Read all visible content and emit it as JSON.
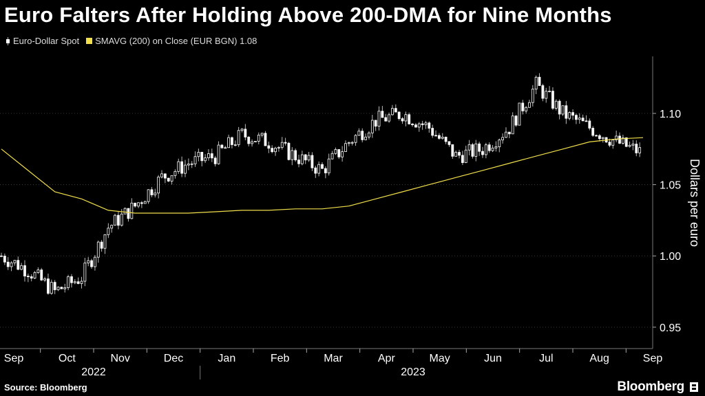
{
  "title": "Euro Falters After Holding Above 200-DMA for Nine Months",
  "legend": {
    "spot_label": "Euro-Dollar Spot",
    "sma_label": "SMAVG (200)  on Close (EUR BGN) 1.08"
  },
  "colors": {
    "background": "#000000",
    "candle": "#ffffff",
    "sma_line": "#f2e04a",
    "grid": "#3a3a3a",
    "text": "#ffffff"
  },
  "source": "Source: Bloomberg",
  "brand": "Bloomberg",
  "chart_data": {
    "type": "line",
    "title": "Euro Falters After Holding Above 200-DMA for Nine Months",
    "ylabel": "Dollars per euro",
    "y_axis_position": "right",
    "ylim": [
      0.935,
      1.14
    ],
    "yticks": [
      0.95,
      1.0,
      1.05,
      1.1
    ],
    "ytick_labels": [
      "0.95",
      "1.00",
      "1.05",
      "1.10"
    ],
    "grid": true,
    "legend_position": "top-left",
    "x_month_labels": [
      "Sep",
      "Oct",
      "Nov",
      "Dec",
      "Jan",
      "Feb",
      "Mar",
      "Apr",
      "May",
      "Jun",
      "Jul",
      "Aug",
      "Sep"
    ],
    "x_year_labels": [
      {
        "label": "2022",
        "under_months": [
          "Oct",
          "Nov"
        ]
      },
      {
        "label": "2023",
        "under_months": [
          "Apr",
          "May"
        ]
      }
    ],
    "x": [
      "2022-09",
      "2022-09",
      "2022-10",
      "2022-10",
      "2022-11",
      "2022-11",
      "2022-12",
      "2022-12",
      "2023-01",
      "2023-01",
      "2023-02",
      "2023-02",
      "2023-03",
      "2023-03",
      "2023-04",
      "2023-04",
      "2023-05",
      "2023-05",
      "2023-06",
      "2023-06",
      "2023-07",
      "2023-07",
      "2023-08",
      "2023-08",
      "2023-09"
    ],
    "series": [
      {
        "name": "Euro-Dollar Spot",
        "style": "candlestick",
        "values": [
          1.0,
          0.99,
          0.975,
          0.985,
          1.02,
          1.035,
          1.055,
          1.065,
          1.07,
          1.085,
          1.08,
          1.07,
          1.06,
          1.08,
          1.095,
          1.1,
          1.09,
          1.07,
          1.075,
          1.09,
          1.12,
          1.1,
          1.09,
          1.08,
          1.072
        ]
      },
      {
        "name": "SMAVG (200)  on Close (EUR BGN) 1.08",
        "style": "line",
        "values": [
          1.075,
          1.06,
          1.045,
          1.04,
          1.032,
          1.03,
          1.03,
          1.03,
          1.031,
          1.032,
          1.032,
          1.033,
          1.033,
          1.035,
          1.04,
          1.045,
          1.05,
          1.055,
          1.06,
          1.065,
          1.07,
          1.075,
          1.08,
          1.082,
          1.083
        ]
      }
    ]
  }
}
